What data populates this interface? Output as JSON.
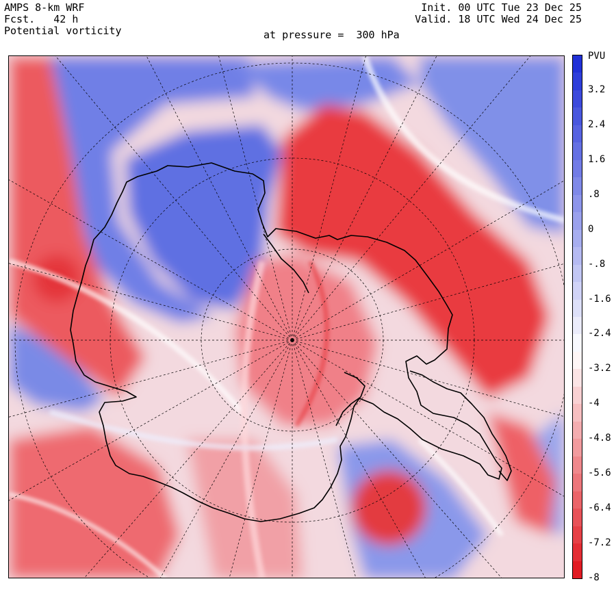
{
  "header": {
    "model": "AMPS 8-km WRF",
    "forecast": "Fcst.   42 h",
    "field": "Potential vorticity",
    "pressure": "at pressure =  300 hPa",
    "init": "Init. 00 UTC Tue 23 Dec 25",
    "valid": "Valid. 18 UTC Wed 24 Dec 25"
  },
  "colorbar": {
    "unit": "PVU",
    "min": -8,
    "max": 4,
    "labels": [
      "3.2",
      "2.4",
      "1.6",
      ".8",
      "0",
      "-.8",
      "-1.6",
      "-2.4",
      "-3.2",
      "-4",
      "-4.8",
      "-5.6",
      "-6.4",
      "-7.2",
      "-8"
    ],
    "label_values": [
      3.2,
      2.4,
      1.6,
      0.8,
      0,
      -0.8,
      -1.6,
      -2.4,
      -3.2,
      -4,
      -4.8,
      -5.6,
      -6.4,
      -7.2,
      -8
    ],
    "positive_color": "#1a2bd6",
    "negative_color": "#e0121a",
    "neutral_color": "#ffffff"
  },
  "map": {
    "projection": "polar-stereographic",
    "hemisphere": "south",
    "gridlines": "dashed",
    "coastline_color": "#000000"
  }
}
